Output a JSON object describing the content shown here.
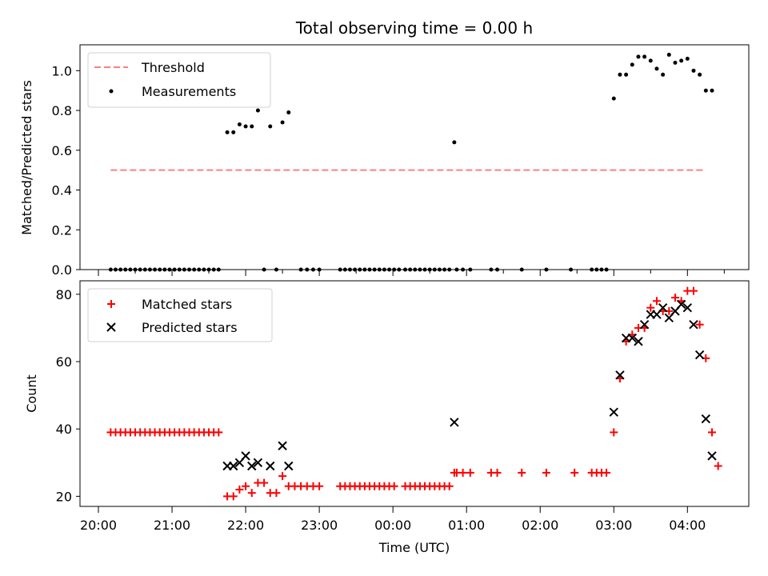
{
  "figure": {
    "title": "Total observing time = 0.00 h"
  },
  "chart_data": [
    {
      "type": "scatter",
      "panel": "top",
      "title": "Total observing time = 0.00 h",
      "xlabel": "",
      "ylabel": "Matched/Predicted stars",
      "xlim": [
        "20:00",
        "04:50"
      ],
      "ylim": [
        0,
        1.13
      ],
      "yticks": [
        0.0,
        0.2,
        0.4,
        0.6,
        0.8,
        1.0
      ],
      "ytick_labels": [
        "0.0",
        "0.2",
        "0.4",
        "0.6",
        "0.8",
        "1.0"
      ],
      "legend_position": "top-left",
      "grid": false,
      "threshold": {
        "name": "Threshold",
        "value": 0.5,
        "x_range": [
          "20:10",
          "04:15"
        ],
        "color": "#ff7f7f",
        "style": "dashed"
      },
      "series": [
        {
          "name": "Measurements",
          "marker": "dot",
          "color": "#000000",
          "points": [
            [
              "20:10",
              0
            ],
            [
              "20:14",
              0
            ],
            [
              "20:18",
              0
            ],
            [
              "20:22",
              0
            ],
            [
              "20:26",
              0
            ],
            [
              "20:30",
              0
            ],
            [
              "20:34",
              0
            ],
            [
              "20:38",
              0
            ],
            [
              "20:42",
              0
            ],
            [
              "20:46",
              0
            ],
            [
              "20:50",
              0
            ],
            [
              "20:54",
              0
            ],
            [
              "20:58",
              0
            ],
            [
              "21:02",
              0
            ],
            [
              "21:06",
              0
            ],
            [
              "21:10",
              0
            ],
            [
              "21:14",
              0
            ],
            [
              "21:18",
              0
            ],
            [
              "21:22",
              0
            ],
            [
              "21:26",
              0
            ],
            [
              "21:30",
              0
            ],
            [
              "21:34",
              0
            ],
            [
              "21:38",
              0
            ],
            [
              "21:45",
              0.69
            ],
            [
              "21:50",
              0.69
            ],
            [
              "21:55",
              0.73
            ],
            [
              "22:00",
              0.72
            ],
            [
              "22:05",
              0.72
            ],
            [
              "22:10",
              0.8
            ],
            [
              "22:20",
              0.72
            ],
            [
              "22:30",
              0.74
            ],
            [
              "22:35",
              0.79
            ],
            [
              "22:15",
              0
            ],
            [
              "22:25",
              0
            ],
            [
              "22:45",
              0
            ],
            [
              "22:50",
              0
            ],
            [
              "22:55",
              0
            ],
            [
              "23:00",
              0
            ],
            [
              "23:17",
              0
            ],
            [
              "23:21",
              0
            ],
            [
              "23:25",
              0
            ],
            [
              "23:29",
              0
            ],
            [
              "23:33",
              0
            ],
            [
              "23:37",
              0
            ],
            [
              "23:41",
              0
            ],
            [
              "23:45",
              0
            ],
            [
              "23:49",
              0
            ],
            [
              "23:53",
              0
            ],
            [
              "23:57",
              0
            ],
            [
              "00:01",
              0
            ],
            [
              "00:05",
              0
            ],
            [
              "00:10",
              0
            ],
            [
              "00:14",
              0
            ],
            [
              "00:18",
              0
            ],
            [
              "00:22",
              0
            ],
            [
              "00:26",
              0
            ],
            [
              "00:30",
              0
            ],
            [
              "00:34",
              0
            ],
            [
              "00:38",
              0
            ],
            [
              "00:42",
              0
            ],
            [
              "00:46",
              0
            ],
            [
              "00:52",
              0
            ],
            [
              "00:57",
              0
            ],
            [
              "01:03",
              0
            ],
            [
              "01:20",
              0
            ],
            [
              "01:25",
              0
            ],
            [
              "01:45",
              0
            ],
            [
              "02:05",
              0
            ],
            [
              "02:25",
              0
            ],
            [
              "02:42",
              0
            ],
            [
              "02:46",
              0
            ],
            [
              "02:50",
              0
            ],
            [
              "02:54",
              0
            ],
            [
              "00:50",
              0.64
            ],
            [
              "03:00",
              0.86
            ],
            [
              "03:05",
              0.98
            ],
            [
              "03:10",
              0.98
            ],
            [
              "03:15",
              1.03
            ],
            [
              "03:20",
              1.07
            ],
            [
              "03:25",
              1.07
            ],
            [
              "03:30",
              1.05
            ],
            [
              "03:35",
              1.01
            ],
            [
              "03:40",
              0.98
            ],
            [
              "03:45",
              1.08
            ],
            [
              "03:50",
              1.04
            ],
            [
              "03:55",
              1.05
            ],
            [
              "04:00",
              1.06
            ],
            [
              "04:05",
              1.0
            ],
            [
              "04:10",
              0.98
            ],
            [
              "04:15",
              0.9
            ],
            [
              "04:20",
              0.9
            ]
          ]
        }
      ]
    },
    {
      "type": "scatter",
      "panel": "bottom",
      "xlabel": "Time (UTC)",
      "ylabel": "Count",
      "xlim": [
        "20:00",
        "04:50"
      ],
      "ylim": [
        17,
        84
      ],
      "xtick_labels": [
        "20:00",
        "21:00",
        "22:00",
        "23:00",
        "00:00",
        "01:00",
        "02:00",
        "03:00",
        "04:00"
      ],
      "yticks": [
        20,
        40,
        60,
        80
      ],
      "ytick_labels": [
        "20",
        "40",
        "60",
        "80"
      ],
      "legend_position": "top-left",
      "grid": false,
      "series": [
        {
          "name": "Matched stars",
          "marker": "plus",
          "color": "#ff0000",
          "points": [
            [
              "20:10",
              39
            ],
            [
              "20:14",
              39
            ],
            [
              "20:18",
              39
            ],
            [
              "20:22",
              39
            ],
            [
              "20:26",
              39
            ],
            [
              "20:30",
              39
            ],
            [
              "20:34",
              39
            ],
            [
              "20:38",
              39
            ],
            [
              "20:42",
              39
            ],
            [
              "20:46",
              39
            ],
            [
              "20:50",
              39
            ],
            [
              "20:54",
              39
            ],
            [
              "20:58",
              39
            ],
            [
              "21:02",
              39
            ],
            [
              "21:06",
              39
            ],
            [
              "21:10",
              39
            ],
            [
              "21:14",
              39
            ],
            [
              "21:18",
              39
            ],
            [
              "21:22",
              39
            ],
            [
              "21:26",
              39
            ],
            [
              "21:30",
              39
            ],
            [
              "21:34",
              39
            ],
            [
              "21:38",
              39
            ],
            [
              "21:45",
              20
            ],
            [
              "21:50",
              20
            ],
            [
              "21:55",
              22
            ],
            [
              "22:00",
              23
            ],
            [
              "22:05",
              21
            ],
            [
              "22:10",
              24
            ],
            [
              "22:15",
              24
            ],
            [
              "22:20",
              21
            ],
            [
              "22:25",
              21
            ],
            [
              "22:30",
              26
            ],
            [
              "22:35",
              23
            ],
            [
              "22:40",
              23
            ],
            [
              "22:45",
              23
            ],
            [
              "22:50",
              23
            ],
            [
              "22:55",
              23
            ],
            [
              "23:00",
              23
            ],
            [
              "23:17",
              23
            ],
            [
              "23:21",
              23
            ],
            [
              "23:25",
              23
            ],
            [
              "23:29",
              23
            ],
            [
              "23:33",
              23
            ],
            [
              "23:37",
              23
            ],
            [
              "23:41",
              23
            ],
            [
              "23:45",
              23
            ],
            [
              "23:49",
              23
            ],
            [
              "23:53",
              23
            ],
            [
              "23:57",
              23
            ],
            [
              "00:01",
              23
            ],
            [
              "00:10",
              23
            ],
            [
              "00:14",
              23
            ],
            [
              "00:18",
              23
            ],
            [
              "00:22",
              23
            ],
            [
              "00:26",
              23
            ],
            [
              "00:30",
              23
            ],
            [
              "00:34",
              23
            ],
            [
              "00:38",
              23
            ],
            [
              "00:42",
              23
            ],
            [
              "00:46",
              23
            ],
            [
              "00:52",
              27
            ],
            [
              "00:57",
              27
            ],
            [
              "01:03",
              27
            ],
            [
              "01:20",
              27
            ],
            [
              "01:25",
              27
            ],
            [
              "01:45",
              27
            ],
            [
              "02:05",
              27
            ],
            [
              "02:28",
              27
            ],
            [
              "02:42",
              27
            ],
            [
              "02:46",
              27
            ],
            [
              "02:50",
              27
            ],
            [
              "02:54",
              27
            ],
            [
              "00:50",
              27
            ],
            [
              "03:00",
              39
            ],
            [
              "03:05",
              55
            ],
            [
              "03:10",
              66
            ],
            [
              "03:15",
              68
            ],
            [
              "03:20",
              70
            ],
            [
              "03:25",
              70
            ],
            [
              "03:30",
              76
            ],
            [
              "03:35",
              78
            ],
            [
              "03:40",
              75
            ],
            [
              "03:45",
              75
            ],
            [
              "03:50",
              79
            ],
            [
              "03:55",
              78
            ],
            [
              "04:00",
              81
            ],
            [
              "04:05",
              81
            ],
            [
              "04:10",
              71
            ],
            [
              "04:15",
              61
            ],
            [
              "04:20",
              39
            ],
            [
              "04:25",
              29
            ]
          ]
        },
        {
          "name": "Predicted stars",
          "marker": "x",
          "color": "#000000",
          "points": [
            [
              "21:45",
              29
            ],
            [
              "21:50",
              29
            ],
            [
              "21:55",
              30
            ],
            [
              "22:00",
              32
            ],
            [
              "22:05",
              29
            ],
            [
              "22:10",
              30
            ],
            [
              "22:20",
              29
            ],
            [
              "22:30",
              35
            ],
            [
              "22:35",
              29
            ],
            [
              "00:50",
              42
            ],
            [
              "03:00",
              45
            ],
            [
              "03:05",
              56
            ],
            [
              "03:10",
              67
            ],
            [
              "03:15",
              67
            ],
            [
              "03:20",
              66
            ],
            [
              "03:25",
              71
            ],
            [
              "03:30",
              74
            ],
            [
              "03:35",
              74
            ],
            [
              "03:40",
              76
            ],
            [
              "03:45",
              73
            ],
            [
              "03:50",
              75
            ],
            [
              "03:55",
              77
            ],
            [
              "04:00",
              76
            ],
            [
              "04:05",
              71
            ],
            [
              "04:10",
              62
            ],
            [
              "04:15",
              43
            ],
            [
              "04:20",
              32
            ]
          ]
        }
      ]
    }
  ]
}
